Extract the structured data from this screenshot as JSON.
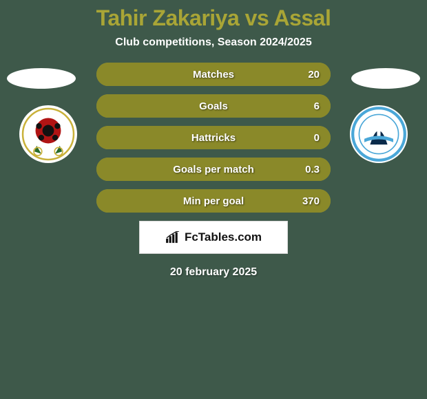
{
  "colors": {
    "background": "#3e594a",
    "title": "#a9a536",
    "subtitle_text": "#ffffff",
    "oval": "#ffffff",
    "bar_base": "#a9a536",
    "bar_fill": "#8a8929",
    "brand_border": "#d9d9d9",
    "date_text": "#ffffff",
    "badge_left_ring": "#c9b13a",
    "badge_left_core": "#b01414",
    "badge_right_ring": "#4aa7d8",
    "badge_right_core": "#ffffff"
  },
  "title": "Tahir Zakariya vs Assal",
  "subtitle": "Club competitions, Season 2024/2025",
  "brand": "FcTables.com",
  "date": "20 february 2025",
  "stats": [
    {
      "label": "Matches",
      "value": "20",
      "fill_pct": 100
    },
    {
      "label": "Goals",
      "value": "6",
      "fill_pct": 100
    },
    {
      "label": "Hattricks",
      "value": "0",
      "fill_pct": 100
    },
    {
      "label": "Goals per match",
      "value": "0.3",
      "fill_pct": 100
    },
    {
      "label": "Min per goal",
      "value": "370",
      "fill_pct": 100
    }
  ]
}
